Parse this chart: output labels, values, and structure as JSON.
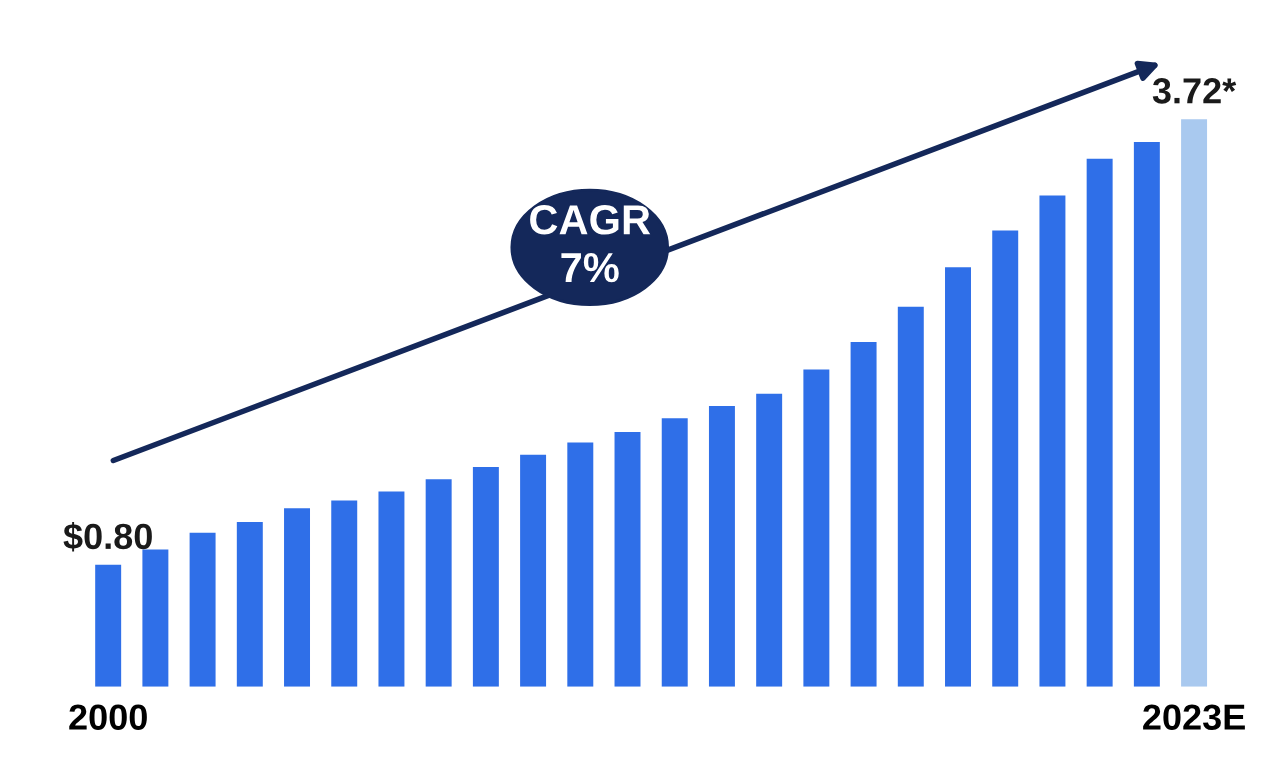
{
  "chart_data": {
    "type": "bar",
    "categories": [
      "2000",
      null,
      null,
      null,
      null,
      null,
      null,
      null,
      null,
      null,
      null,
      null,
      null,
      null,
      null,
      null,
      null,
      null,
      null,
      null,
      null,
      null,
      null,
      "2023E"
    ],
    "values": [
      0.8,
      0.9,
      1.01,
      1.08,
      1.17,
      1.22,
      1.28,
      1.36,
      1.44,
      1.52,
      1.6,
      1.67,
      1.76,
      1.84,
      1.92,
      2.08,
      2.26,
      2.49,
      2.75,
      2.99,
      3.22,
      3.46,
      3.57,
      3.72
    ],
    "colors": [
      "#2f6fe8",
      "#2f6fe8",
      "#2f6fe8",
      "#2f6fe8",
      "#2f6fe8",
      "#2f6fe8",
      "#2f6fe8",
      "#2f6fe8",
      "#2f6fe8",
      "#2f6fe8",
      "#2f6fe8",
      "#2f6fe8",
      "#2f6fe8",
      "#2f6fe8",
      "#2f6fe8",
      "#2f6fe8",
      "#2f6fe8",
      "#2f6fe8",
      "#2f6fe8",
      "#2f6fe8",
      "#2f6fe8",
      "#2f6fe8",
      "#2f6fe8",
      "#a9c9ef"
    ],
    "value_labels": [
      "$0.80",
      null,
      null,
      null,
      null,
      null,
      null,
      null,
      null,
      null,
      null,
      null,
      null,
      null,
      null,
      null,
      null,
      null,
      null,
      null,
      null,
      null,
      null,
      "3.72*"
    ],
    "annotations": [
      "CAGR\n7%"
    ],
    "grid": false,
    "legend": false
  }
}
